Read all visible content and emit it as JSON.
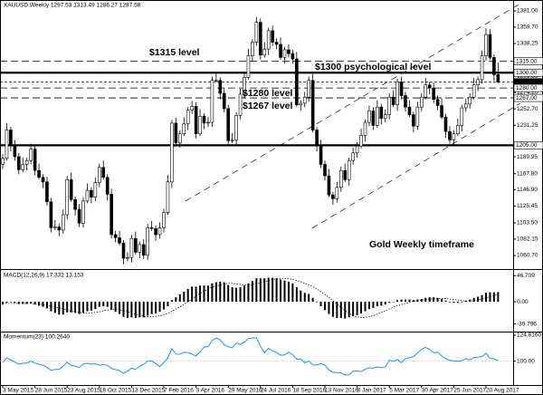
{
  "chart_data": [
    {
      "type": "candlestick",
      "title": "XAUUSD,Weekly 1297.53 1313.49 1286.27 1287.58",
      "categories": [
        "3 May 2015",
        null,
        null,
        null,
        null,
        null,
        null,
        null,
        "28 Jun 2015",
        null,
        null,
        null,
        null,
        null,
        null,
        null,
        "23 Aug 2015",
        null,
        null,
        null,
        null,
        null,
        null,
        null,
        "18 Oct 2015",
        null,
        null,
        null,
        null,
        null,
        null,
        null,
        "13 Dec 2015",
        null,
        null,
        null,
        null,
        null,
        null,
        null,
        "7 Feb 2016",
        null,
        null,
        null,
        null,
        null,
        null,
        null,
        "3 Apr 2016",
        null,
        null,
        null,
        null,
        null,
        null,
        null,
        "29 May 2016",
        null,
        null,
        null,
        null,
        null,
        null,
        null,
        "24 Jul 2016",
        null,
        null,
        null,
        null,
        null,
        null,
        null,
        "18 Sep 2016",
        null,
        null,
        null,
        null,
        null,
        null,
        null,
        "13 Nov 2016",
        null,
        null,
        null,
        null,
        null,
        null,
        null,
        "8 Jan 2017",
        null,
        null,
        null,
        null,
        null,
        null,
        null,
        "5 Mar 2017",
        null,
        null,
        null,
        null,
        null,
        null,
        null,
        "30 Apr 2017",
        null,
        null,
        null,
        null,
        null,
        null,
        null,
        "25 Jun 2017",
        null,
        null,
        null,
        null,
        null,
        null,
        null,
        "20 Aug 2017",
        null,
        null,
        null
      ],
      "open": [
        1180,
        1188,
        1225,
        1205,
        1190,
        1173,
        1180,
        1185,
        1200,
        1172,
        1163,
        1157,
        1131,
        1097,
        1098,
        1094,
        1114,
        1160,
        1134,
        1121,
        1103,
        1132,
        1146,
        1137,
        1156,
        1176,
        1163,
        1141,
        1088,
        1084,
        1077,
        1057,
        1058,
        1083,
        1065,
        1075,
        1061,
        1097,
        1096,
        1088,
        1097,
        1117,
        1157,
        1234,
        1208,
        1220,
        1233,
        1251,
        1256,
        1220,
        1243,
        1234,
        1235,
        1290,
        1290,
        1273,
        1253,
        1211,
        1212,
        1244,
        1272,
        1294,
        1322,
        1340,
        1366,
        1323,
        1331,
        1355,
        1340,
        1337,
        1320,
        1330,
        1325,
        1318,
        1258,
        1260,
        1268,
        1290,
        1225,
        1205,
        1180,
        1165,
        1140,
        1135,
        1150,
        1172,
        1160,
        1185,
        1195,
        1204,
        1218,
        1235,
        1250,
        1231,
        1255,
        1240,
        1245,
        1268,
        1258,
        1288,
        1270,
        1255,
        1245,
        1230,
        1255,
        1268,
        1284,
        1280,
        1265,
        1257,
        1242,
        1223,
        1212,
        1220,
        1231,
        1254,
        1259,
        1268,
        1284,
        1291,
        1322,
        1350,
        1320,
        1297.53
      ],
      "high": [
        1193,
        1234,
        1229,
        1212,
        1195,
        1189,
        1189,
        1207,
        1205,
        1181,
        1167,
        1164,
        1136,
        1107,
        1102,
        1121,
        1165,
        1169,
        1138,
        1128,
        1137,
        1155,
        1150,
        1163,
        1181,
        1185,
        1167,
        1148,
        1093,
        1093,
        1081,
        1065,
        1088,
        1092,
        1079,
        1082,
        1102,
        1106,
        1100,
        1104,
        1122,
        1166,
        1238,
        1241,
        1225,
        1242,
        1255,
        1263,
        1261,
        1252,
        1247,
        1242,
        1295,
        1299,
        1294,
        1280,
        1258,
        1221,
        1248,
        1279,
        1299,
        1331,
        1344,
        1373,
        1371,
        1340,
        1359,
        1362,
        1345,
        1346,
        1334,
        1337,
        1330,
        1327,
        1264,
        1275,
        1295,
        1299,
        1229,
        1212,
        1185,
        1174,
        1144,
        1157,
        1177,
        1181,
        1189,
        1202,
        1209,
        1227,
        1239,
        1257,
        1255,
        1264,
        1259,
        1252,
        1273,
        1277,
        1292,
        1295,
        1275,
        1264,
        1249,
        1262,
        1273,
        1293,
        1288,
        1287,
        1270,
        1266,
        1246,
        1230,
        1225,
        1240,
        1258,
        1266,
        1273,
        1293,
        1295,
        1329,
        1358,
        1357,
        1324,
        1313.49
      ],
      "low": [
        1174,
        1185,
        1197,
        1185,
        1167,
        1170,
        1172,
        1180,
        1166,
        1160,
        1149,
        1126,
        1091,
        1094,
        1086,
        1089,
        1108,
        1131,
        1113,
        1098,
        1097,
        1129,
        1129,
        1132,
        1150,
        1160,
        1133,
        1083,
        1078,
        1074,
        1049,
        1053,
        1052,
        1062,
        1057,
        1056,
        1055,
        1093,
        1080,
        1083,
        1091,
        1114,
        1149,
        1203,
        1202,
        1217,
        1225,
        1246,
        1214,
        1217,
        1226,
        1229,
        1229,
        1287,
        1265,
        1248,
        1205,
        1208,
        1204,
        1239,
        1266,
        1291,
        1314,
        1335,
        1317,
        1320,
        1323,
        1335,
        1331,
        1317,
        1312,
        1320,
        1312,
        1255,
        1250,
        1255,
        1262,
        1222,
        1197,
        1175,
        1159,
        1137,
        1127,
        1130,
        1144,
        1157,
        1152,
        1180,
        1189,
        1201,
        1210,
        1230,
        1225,
        1228,
        1232,
        1235,
        1239,
        1255,
        1250,
        1265,
        1249,
        1242,
        1222,
        1225,
        1249,
        1265,
        1272,
        1260,
        1251,
        1239,
        1215,
        1207,
        1206,
        1217,
        1223,
        1249,
        1253,
        1265,
        1276,
        1286,
        1316,
        1317,
        1289,
        1286.27
      ],
      "close": [
        1188,
        1225,
        1205,
        1190,
        1173,
        1180,
        1185,
        1200,
        1172,
        1163,
        1157,
        1131,
        1097,
        1098,
        1094,
        1114,
        1160,
        1134,
        1121,
        1103,
        1132,
        1146,
        1137,
        1156,
        1176,
        1163,
        1141,
        1088,
        1084,
        1077,
        1057,
        1058,
        1083,
        1065,
        1075,
        1061,
        1097,
        1096,
        1088,
        1097,
        1117,
        1157,
        1234,
        1208,
        1220,
        1233,
        1251,
        1256,
        1220,
        1243,
        1234,
        1235,
        1290,
        1290,
        1273,
        1253,
        1211,
        1212,
        1244,
        1272,
        1294,
        1322,
        1340,
        1366,
        1323,
        1331,
        1355,
        1340,
        1337,
        1320,
        1330,
        1325,
        1318,
        1258,
        1260,
        1268,
        1290,
        1225,
        1205,
        1180,
        1165,
        1140,
        1135,
        1150,
        1172,
        1160,
        1185,
        1195,
        1204,
        1218,
        1235,
        1250,
        1231,
        1255,
        1240,
        1245,
        1268,
        1258,
        1288,
        1270,
        1255,
        1245,
        1230,
        1255,
        1268,
        1284,
        1280,
        1265,
        1257,
        1242,
        1223,
        1212,
        1220,
        1231,
        1254,
        1259,
        1268,
        1284,
        1291,
        1322,
        1350,
        1320,
        1297.53,
        1287.58
      ],
      "up_color": "#ffffff",
      "down_color": "#000000",
      "ylim": [
        1044.1,
        1395.2
      ],
      "yticks": [
        {
          "value": 1381,
          "label": "1381.00"
        },
        {
          "value": 1359.7,
          "label": "1359.70"
        },
        {
          "value": 1338.25,
          "label": "1338.25"
        },
        {
          "value": 1295.35,
          "label": "1295.35"
        },
        {
          "value": 1274.2,
          "label": "1274.20"
        },
        {
          "value": 1252.7,
          "label": "1252.70"
        },
        {
          "value": 1231.25,
          "label": "1231.25"
        },
        {
          "value": 1189.95,
          "label": "1189.95"
        },
        {
          "value": 1167.8,
          "label": "1167.80"
        },
        {
          "value": 1146.9,
          "label": "1146.90"
        },
        {
          "value": 1125.45,
          "label": "1125.45"
        },
        {
          "value": 1103.5,
          "label": "1103.50"
        },
        {
          "value": 1082.15,
          "label": "1082.15"
        },
        {
          "value": 1060.7,
          "label": "1060.70"
        }
      ],
      "levels": [
        {
          "value": 1315,
          "label": "1315.00",
          "style": "dashed"
        },
        {
          "value": 1300,
          "label": "1300.00",
          "style": "solid"
        },
        {
          "value": 1287.58,
          "style": "current"
        },
        {
          "value": 1280,
          "label": "1280.00",
          "style": "dashed"
        },
        {
          "value": 1267,
          "label": "1267.00",
          "style": "dashed"
        },
        {
          "value": 1205,
          "label": "1205.00",
          "style": "solid"
        }
      ],
      "annotations": [
        "$1315 level",
        "$1300 psychological level",
        "$1280 level",
        "$1267 level",
        "Gold Weekly timeframe"
      ]
    },
    {
      "type": "macd",
      "title": "MACD(12,26,9) 17.332 13.153",
      "macd": [
        -5,
        -2,
        -1,
        -2,
        -4,
        -4,
        -4,
        -3,
        -5,
        -7,
        -9,
        -12,
        -17,
        -20,
        -23,
        -23,
        -19,
        -19,
        -20,
        -22,
        -20,
        -17,
        -16,
        -13,
        -9,
        -8,
        -9,
        -14,
        -18,
        -22,
        -27,
        -29,
        -28,
        -29,
        -28,
        -28,
        -25,
        -22,
        -21,
        -18,
        -14,
        -8,
        3,
        8,
        13,
        18,
        23,
        27,
        27,
        29,
        29,
        29,
        33,
        35,
        36,
        35,
        30,
        26,
        25,
        26,
        29,
        33,
        37,
        42,
        42,
        42,
        43,
        43,
        42,
        40,
        38,
        36,
        33,
        26,
        20,
        16,
        14,
        7,
        0,
        -8,
        -15,
        -22,
        -27,
        -29,
        -29,
        -30,
        -28,
        -26,
        -24,
        -21,
        -17,
        -13,
        -11,
        -8,
        -7,
        -5,
        -2,
        0,
        3,
        4,
        4,
        4,
        3,
        4,
        5,
        7,
        8,
        8,
        7,
        5,
        2,
        -1,
        -2,
        -2,
        0,
        2,
        4,
        7,
        9,
        12,
        16,
        17,
        17,
        17.332
      ],
      "signal": [
        -3,
        -3,
        -3,
        -3,
        -3,
        -3,
        -3,
        -3,
        -4,
        -4,
        -5,
        -6,
        -8,
        -9,
        -11,
        -13,
        -15,
        -17,
        -18,
        -19,
        -20,
        -20,
        -20,
        -19,
        -18,
        -16,
        -15,
        -14,
        -14,
        -14,
        -16,
        -18,
        -20,
        -22,
        -24,
        -26,
        -27,
        -27,
        -26,
        -25,
        -23,
        -21,
        -17,
        -13,
        -9,
        -5,
        0,
        5,
        10,
        15,
        19,
        23,
        26,
        28,
        30,
        32,
        33,
        33,
        32,
        31,
        30,
        30,
        31,
        32,
        34,
        36,
        38,
        40,
        41,
        42,
        42,
        41,
        40,
        38,
        36,
        33,
        30,
        27,
        23,
        18,
        13,
        8,
        2,
        -4,
        -10,
        -16,
        -21,
        -25,
        -27,
        -28,
        -28,
        -27,
        -25,
        -22,
        -19,
        -16,
        -13,
        -10,
        -7,
        -5,
        -3,
        -1,
        1,
        2,
        3,
        4,
        5,
        5,
        6,
        6,
        6,
        5,
        4,
        3,
        2,
        1,
        1,
        2,
        3,
        5,
        7,
        9,
        11,
        13.153
      ],
      "color": "#000000",
      "ylim": [
        -53.4,
        56.9
      ],
      "yticks": [
        46.709,
        {
          "value": 0,
          "label": "0.00"
        },
        -39.796
      ]
    },
    {
      "type": "line",
      "title": "Momentum(23) 100.2640",
      "values": [
        99,
        103,
        101,
        99,
        97,
        98,
        98,
        100,
        98,
        97,
        96,
        94,
        91,
        92,
        92,
        95,
        99,
        96,
        95,
        94,
        97,
        98,
        97,
        97.3,
        96,
        96.5,
        95.9,
        92.8,
        91.9,
        90.9,
        88.1,
        90.3,
        93.1,
        92,
        95,
        96.7,
        99.9,
        100.2,
        97.7,
        94.6,
        98.5,
        103.2,
        111.9,
        106.7,
        106.5,
        108.4,
        108.2,
        106.8,
        104.9,
        108.9,
        113.4,
        113.9,
        119.8,
        122,
        120.3,
        115.7,
        113.7,
        112.7,
        117.2,
        116,
        118.1,
        121.5,
        122.2,
        122.3,
        114.3,
        107.9,
        112.2,
        109.8,
        108.4,
        105.5,
        105.9,
        108.6,
        106,
        101.9,
        102,
        98.3,
        100,
        96.2,
        96.2,
        97.4,
        96.1,
        91.6,
        89.2,
        88.9,
        88.7,
        86.6,
        86.8,
        90.3,
        90.5,
        89.9,
        92.2,
        93.5,
        93.3,
        94.4,
        93.6,
        94.5,
        100.8,
        99.8,
        101.6,
        98.4,
        102.4,
        103.3,
        104.2,
        107.7,
        111.2,
        113.1,
        111.3,
        107.9,
        108.4,
        104.8,
        102.3,
        100.7,
        100.2,
        99.7,
        100.3,
        102.3,
        101,
        103.5,
        103.7,
        104.3,
        107.3,
        102.5,
        102.2,
        100.264
      ],
      "color": "#1e90ff",
      "ylim": [
        77,
        127.4
      ],
      "yticks": [
        {
          "value": 124.816,
          "label": "124.8160"
        },
        {
          "value": 100,
          "label": "100.00"
        }
      ]
    }
  ]
}
